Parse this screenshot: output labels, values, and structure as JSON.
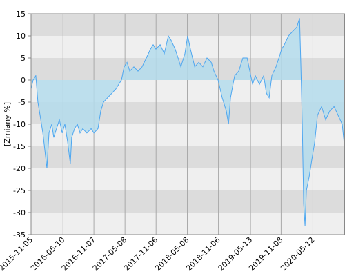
{
  "chart_data": {
    "type": "line",
    "y_label": "[Zmiany %]",
    "x": [
      "2015-11-05",
      "2015-11-17",
      "2015-12-03",
      "2015-12-15",
      "2015-12-28",
      "2016-01-13",
      "2016-01-25",
      "2016-02-06",
      "2016-02-18",
      "2016-03-05",
      "2016-03-17",
      "2016-04-02",
      "2016-04-19",
      "2016-05-05",
      "2016-05-21",
      "2016-06-06",
      "2016-06-22",
      "2016-06-30",
      "2016-07-17",
      "2016-08-02",
      "2016-08-18",
      "2016-09-03",
      "2016-09-27",
      "2016-10-22",
      "2016-11-07",
      "2016-12-01",
      "2016-12-17",
      "2017-01-02",
      "2017-01-26",
      "2017-02-20",
      "2017-03-16",
      "2017-04-01",
      "2017-04-17",
      "2017-05-03",
      "2017-05-20",
      "2017-06-05",
      "2017-06-29",
      "2017-07-23",
      "2017-08-16",
      "2017-09-10",
      "2017-10-04",
      "2017-10-20",
      "2017-11-05",
      "2017-11-30",
      "2017-12-24",
      "2018-01-17",
      "2018-02-02",
      "2018-02-26",
      "2018-03-15",
      "2018-03-31",
      "2018-04-24",
      "2018-05-10",
      "2018-05-26",
      "2018-06-20",
      "2018-07-14",
      "2018-08-07",
      "2018-08-31",
      "2018-09-25",
      "2018-10-11",
      "2018-11-04",
      "2018-11-28",
      "2018-12-22",
      "2019-01-04",
      "2019-01-16",
      "2019-02-09",
      "2019-03-05",
      "2019-03-29",
      "2019-04-23",
      "2019-05-09",
      "2019-05-25",
      "2019-06-10",
      "2019-07-04",
      "2019-07-29",
      "2019-08-14",
      "2019-08-30",
      "2019-09-15",
      "2019-10-09",
      "2019-10-26",
      "2019-11-11",
      "2019-11-27",
      "2019-12-21",
      "2020-01-14",
      "2020-02-08",
      "2020-02-24",
      "2020-03-03",
      "2020-03-11",
      "2020-03-19",
      "2020-03-27",
      "2020-04-04",
      "2020-04-20",
      "2020-05-06",
      "2020-05-23",
      "2020-06-08",
      "2020-07-02",
      "2020-07-26",
      "2020-08-19",
      "2020-09-13",
      "2020-10-07",
      "2020-10-31",
      "2020-11-16"
    ],
    "series": [
      {
        "color": "#4da6f0",
        "fill": "#b4dcec",
        "values": [
          -2,
          0,
          1,
          -5,
          -8,
          -12,
          -16,
          -20,
          -12,
          -10,
          -13,
          -11,
          -9,
          -12,
          -10,
          -14,
          -19,
          -13,
          -11,
          -10,
          -12,
          -11,
          -12,
          -11,
          -12,
          -11,
          -7,
          -5,
          -4,
          -3,
          -2,
          -1,
          0,
          3,
          4,
          2,
          3,
          2,
          3,
          5,
          7,
          8,
          7,
          8,
          6,
          10,
          9,
          7,
          5,
          3,
          6,
          10,
          7,
          3,
          4,
          3,
          5,
          4,
          2,
          0,
          -4,
          -7,
          -10,
          -4,
          1,
          2,
          5,
          5,
          2,
          -1,
          1,
          -1,
          1,
          -3,
          -4,
          1,
          3,
          5,
          7,
          8,
          10,
          11,
          12,
          14,
          3,
          -10,
          -28,
          -33,
          -25,
          -22,
          -18,
          -14,
          -8,
          -6,
          -9,
          -7,
          -6,
          -8,
          -10,
          -16
        ]
      }
    ],
    "xlim": [
      "2015-11-05",
      "2020-11-16"
    ],
    "xticks": [
      "2015-11-05",
      "2016-05-10",
      "2016-11-07",
      "2017-05-08",
      "2017-11-06",
      "2018-05-08",
      "2018-11-06",
      "2019-05-13",
      "2019-11-08",
      "2020-05-12"
    ],
    "ylim": [
      -35,
      15
    ],
    "yticks": [
      15,
      10,
      5,
      0,
      -5,
      -10,
      -15,
      -20,
      -25,
      -30,
      -35
    ],
    "band_colors": [
      "#dcdcdc",
      "#efefef"
    ],
    "grid": true
  }
}
